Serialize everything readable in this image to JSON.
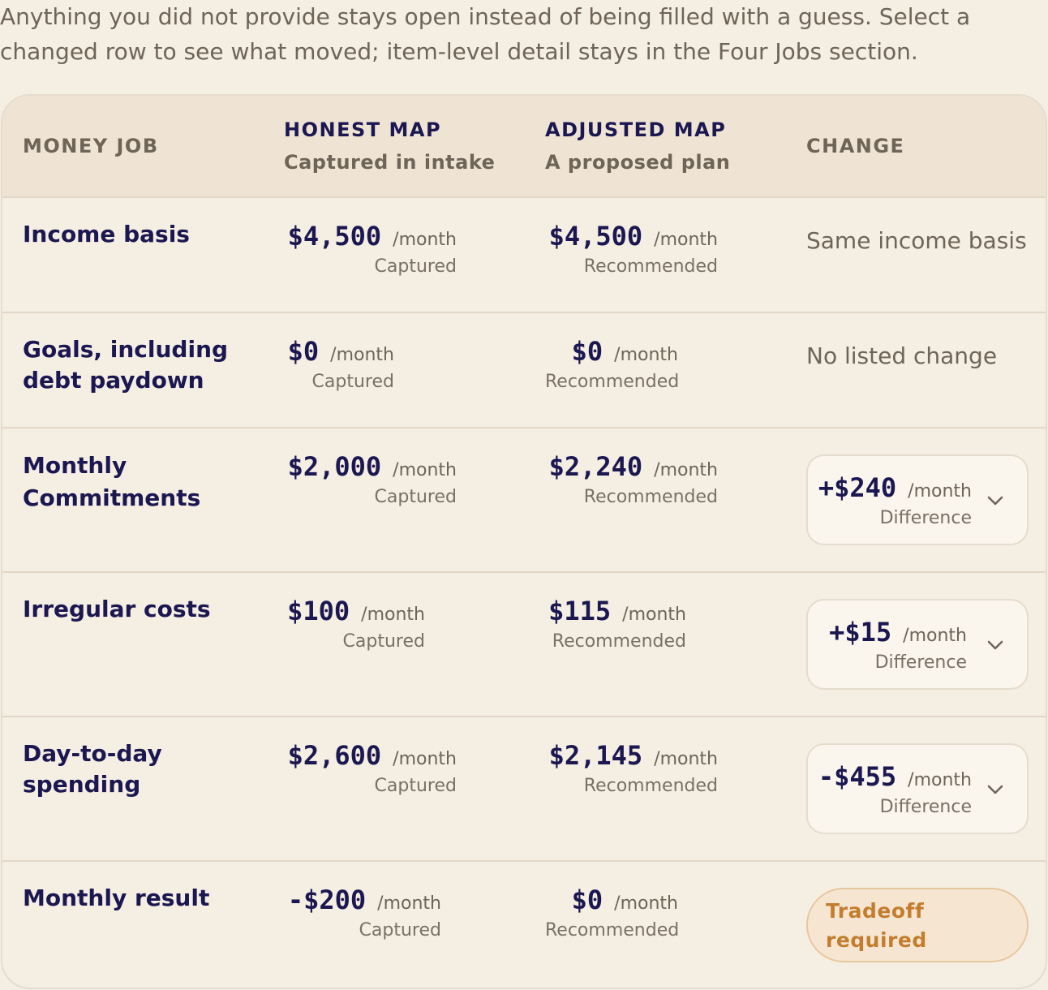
{
  "intro": {
    "line1": "Anything you did not provide stays open instead of being filled with a guess. Select a",
    "line2": "changed row to see what moved; item-level detail stays in the Four Jobs section."
  },
  "headers": {
    "job": "MONEY JOB",
    "honest": "HONEST MAP",
    "honest_sub": "Captured in intake",
    "adjusted": "ADJUSTED MAP",
    "adjusted_sub": "A proposed plan",
    "change": "CHANGE"
  },
  "per_month": "/month",
  "captured_label": "Captured",
  "recommended_label": "Recommended",
  "difference_label": "Difference",
  "rows": [
    {
      "job": "Income basis",
      "honest": "$4,500",
      "adjusted": "$4,500",
      "note": "Same income basis"
    },
    {
      "job": "Goals, including debt paydown",
      "honest": "$0",
      "adjusted": "$0",
      "note": "No listed change"
    },
    {
      "job": "Monthly Commitments",
      "honest": "$2,000",
      "adjusted": "$2,240",
      "change": "+$240"
    },
    {
      "job": "Irregular costs",
      "honest": "$100",
      "adjusted": "$115",
      "change": "+$15"
    },
    {
      "job": "Day-to-day spending",
      "honest": "$2,600",
      "adjusted": "$2,145",
      "change": "-$455"
    },
    {
      "job": "Monthly result",
      "honest": "-$200",
      "adjusted": "$0",
      "badge": "Tradeoff required"
    }
  ],
  "colors": {
    "background": "#f5eee3",
    "header_bg": "#efe4d4",
    "ink": "#1b1751",
    "muted": "#6e6457",
    "tradeoff": "#c47d2e"
  }
}
